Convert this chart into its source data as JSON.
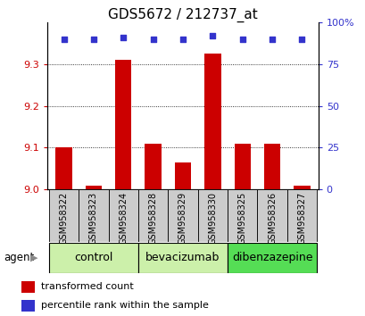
{
  "title": "GDS5672 / 212737_at",
  "samples": [
    "GSM958322",
    "GSM958323",
    "GSM958324",
    "GSM958328",
    "GSM958329",
    "GSM958330",
    "GSM958325",
    "GSM958326",
    "GSM958327"
  ],
  "transformed_counts": [
    9.1,
    9.01,
    9.31,
    9.11,
    9.065,
    9.325,
    9.11,
    9.11,
    9.01
  ],
  "percentile_ranks": [
    90,
    90,
    91,
    90,
    90,
    92,
    90,
    90,
    90
  ],
  "ylim_left": [
    9.0,
    9.4
  ],
  "ylim_right": [
    0,
    100
  ],
  "yticks_left": [
    9.0,
    9.1,
    9.2,
    9.3
  ],
  "yticks_right": [
    0,
    25,
    50,
    75,
    100
  ],
  "ytick_right_labels": [
    "0",
    "25",
    "50",
    "75",
    "100%"
  ],
  "groups": [
    {
      "label": "control",
      "start": 0,
      "end": 3,
      "color": "#ccf0aa"
    },
    {
      "label": "bevacizumab",
      "start": 3,
      "end": 6,
      "color": "#ccf0aa"
    },
    {
      "label": "dibenzazepine",
      "start": 6,
      "end": 9,
      "color": "#55dd55"
    }
  ],
  "bar_color": "#cc0000",
  "dot_color": "#3333cc",
  "bar_width": 0.55,
  "agent_label": "agent",
  "legend_bar_label": "transformed count",
  "legend_dot_label": "percentile rank within the sample",
  "left_tick_color": "#cc0000",
  "right_tick_color": "#3333cc",
  "title_fontsize": 11,
  "tick_fontsize": 8,
  "sample_fontsize": 7,
  "group_label_fontsize": 9,
  "legend_fontsize": 8,
  "sample_box_color": "#cccccc"
}
